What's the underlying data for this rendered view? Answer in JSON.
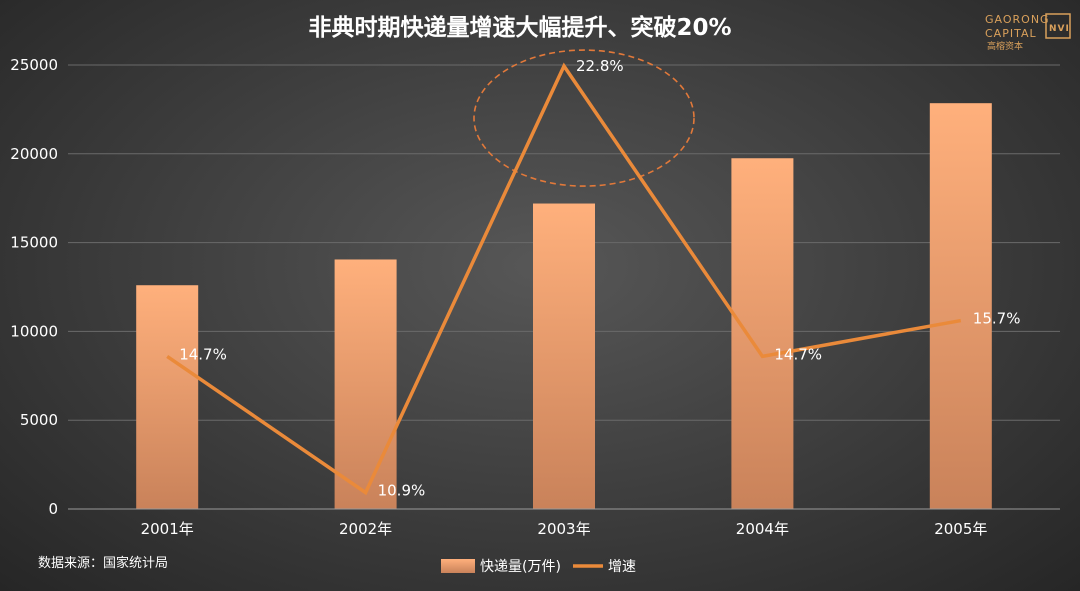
{
  "colors": {
    "bar_top": "#ffb07c",
    "bar_bottom": "#c9825a",
    "line": "#ea8a3a",
    "ellipse": "#e2793a",
    "text": "#ffffff",
    "grid": "#6a6a6a",
    "logo": "#d9a05b"
  },
  "logo": {
    "line1": "GAORONG",
    "line2": "CAPITAL",
    "cn": "高榕资本",
    "mark": "NVI"
  },
  "source": "数据来源：国家统计局",
  "chart_data": {
    "type": "bar",
    "title": "非典时期快递量增速大幅提升、突破20%",
    "categories": [
      "2001年",
      "2002年",
      "2003年",
      "2004年",
      "2005年"
    ],
    "ylim": [
      0,
      25000
    ],
    "yticks": [
      "0",
      "5000",
      "10000",
      "15000",
      "20000",
      "25000"
    ],
    "grid": true,
    "legend_position": "bottom",
    "series": [
      {
        "name": "快递量(万件)",
        "type": "bar",
        "values": [
          12600,
          14050,
          17200,
          19750,
          22850
        ]
      },
      {
        "name": "增速",
        "type": "line",
        "values": [
          14.7,
          10.9,
          22.8,
          14.7,
          15.7
        ],
        "labels": [
          "14.7%",
          "10.9%",
          "22.8%",
          "14.7%",
          "15.7%"
        ]
      }
    ],
    "annotations": [
      {
        "type": "dashed-ellipse",
        "target": "2003年"
      }
    ]
  }
}
